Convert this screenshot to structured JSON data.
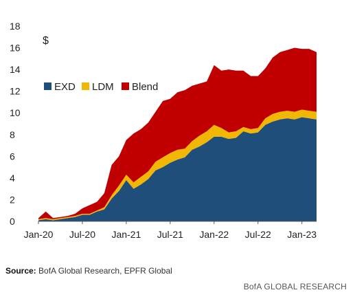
{
  "chart_data": {
    "type": "area",
    "stacked": true,
    "unit_label": "$",
    "x": [
      "Jan-20",
      "Feb-20",
      "Mar-20",
      "Apr-20",
      "May-20",
      "Jun-20",
      "Jul-20",
      "Aug-20",
      "Sep-20",
      "Oct-20",
      "Nov-20",
      "Dec-20",
      "Jan-21",
      "Feb-21",
      "Mar-21",
      "Apr-21",
      "May-21",
      "Jun-21",
      "Jul-21",
      "Aug-21",
      "Sep-21",
      "Oct-21",
      "Nov-21",
      "Dec-21",
      "Jan-22",
      "Feb-22",
      "Mar-22",
      "Apr-22",
      "May-22",
      "Jun-22",
      "Jul-22",
      "Aug-22",
      "Sep-22",
      "Oct-22",
      "Nov-22",
      "Dec-22",
      "Jan-23",
      "Feb-23",
      "Mar-23"
    ],
    "x_tick_labels": [
      "Jan-20",
      "Jul-20",
      "Jan-21",
      "Jul-21",
      "Jan-22",
      "Jul-22",
      "Jan-23"
    ],
    "ylim": [
      0,
      18
    ],
    "y_ticks": [
      0,
      2,
      4,
      6,
      8,
      10,
      12,
      14,
      16,
      18
    ],
    "grid": false,
    "legend_position": "left",
    "series": [
      {
        "name": "EXD",
        "color": "#1f4e7a",
        "values": [
          0.1,
          0.2,
          0.1,
          0.2,
          0.3,
          0.4,
          0.6,
          0.6,
          0.9,
          1.1,
          2.1,
          2.8,
          3.8,
          3.0,
          3.4,
          3.9,
          4.7,
          5.0,
          5.4,
          5.7,
          5.9,
          6.6,
          6.9,
          7.3,
          7.8,
          7.8,
          7.6,
          7.7,
          8.3,
          8.1,
          8.2,
          8.9,
          9.2,
          9.4,
          9.5,
          9.4,
          9.6,
          9.5,
          9.4
        ]
      },
      {
        "name": "LDM",
        "color": "#f2b705",
        "values": [
          0.1,
          0.1,
          0.1,
          0.1,
          0.1,
          0.1,
          0.1,
          0.1,
          0.1,
          0.2,
          0.3,
          0.5,
          0.5,
          0.6,
          0.7,
          0.7,
          0.8,
          0.9,
          0.9,
          0.9,
          0.8,
          0.8,
          1.0,
          1.0,
          1.1,
          0.8,
          0.6,
          0.6,
          0.4,
          0.4,
          0.4,
          0.6,
          0.7,
          0.7,
          0.7,
          0.7,
          0.7,
          0.7,
          0.7
        ]
      },
      {
        "name": "Blend",
        "color": "#c00000",
        "values": [
          0.1,
          0.6,
          0.1,
          0.1,
          0.1,
          0.2,
          0.5,
          0.8,
          0.8,
          1.3,
          2.8,
          2.7,
          3.2,
          4.5,
          4.4,
          4.5,
          4.6,
          5.2,
          5.0,
          5.3,
          5.4,
          5.1,
          4.8,
          4.6,
          5.5,
          5.3,
          5.8,
          5.6,
          5.2,
          4.9,
          4.8,
          4.6,
          5.2,
          5.5,
          5.6,
          5.9,
          5.6,
          5.7,
          5.5
        ]
      }
    ]
  },
  "footer": {
    "source_label": "Source:",
    "source_text": " BofA Global Research, EPFR Global",
    "brand": "BofA GLOBAL RESEARCH"
  }
}
